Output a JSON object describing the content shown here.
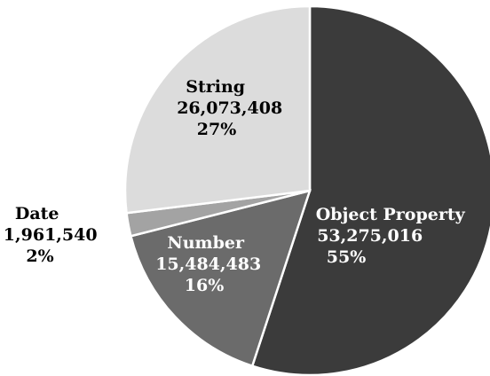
{
  "chart_data": {
    "type": "pie",
    "title": "",
    "start_angle_deg": 0,
    "direction": "clockwise",
    "slices": [
      {
        "label": "Object Property",
        "value": 53275016,
        "value_text": "53,275,016",
        "percent": 55,
        "percent_text": "55%",
        "color": "#3b3b3b",
        "text_color": "#ffffff"
      },
      {
        "label": "Number",
        "value": 15484483,
        "value_text": "15,484,483",
        "percent": 16,
        "percent_text": "16%",
        "color": "#6b6b6b",
        "text_color": "#ffffff"
      },
      {
        "label": "Date",
        "value": 1961540,
        "value_text": "1,961,540",
        "percent": 2,
        "percent_text": "2%",
        "color": "#a3a3a3",
        "text_color": "#000000"
      },
      {
        "label": "String",
        "value": 26073408,
        "value_text": "26,073,408",
        "percent": 27,
        "percent_text": "27%",
        "color": "#dcdcdc",
        "text_color": "#000000"
      }
    ]
  }
}
